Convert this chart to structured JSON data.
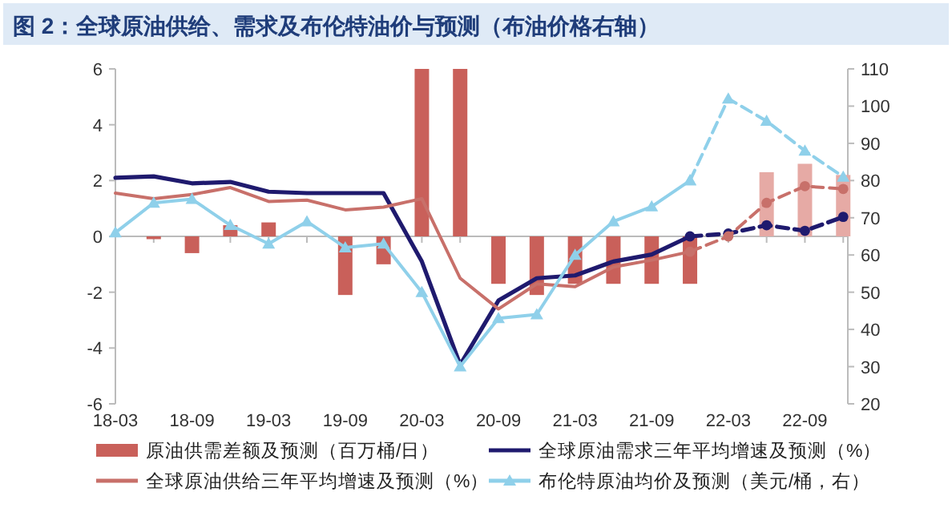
{
  "chart_data": {
    "type": "bar",
    "title": "图 2：全球原油供给、需求及布伦特油价与预测（布油价格右轴）",
    "categories": [
      "18-03",
      null,
      "18-09",
      null,
      "19-03",
      null,
      "19-09",
      null,
      "20-03",
      null,
      "20-09",
      null,
      "21-03",
      null,
      "21-09",
      null,
      "22-03",
      null,
      "22-09",
      null
    ],
    "series": [
      {
        "name": "原油供需差额及预测（百万桶/日）",
        "colors": [
          null,
          "#c9605a",
          "#c9605a",
          "#c9605a",
          "#c9605a",
          null,
          "#c9605a",
          "#c9605a",
          "#c9605a",
          "#c9605a",
          "#c9605a",
          "#c9605a",
          "#c9605a",
          "#c9605a",
          "#c9605a",
          "#c9605a",
          null,
          "#e6aaa5",
          "#e6aaa5",
          "#e6aaa5"
        ],
        "values": [
          null,
          -0.1,
          -0.6,
          0.4,
          0.5,
          null,
          -2.1,
          -1.0,
          6,
          6,
          -1.7,
          -2.1,
          -1.7,
          -1.7,
          -1.7,
          -1.7,
          null,
          2.3,
          2.6,
          2.2
        ]
      },
      {
        "type": "line",
        "name": "全球原油需求三年平均增速及预测（%）",
        "color": "#1f1a6e",
        "line_style": "solid",
        "marker": "none",
        "values": [
          2.1,
          2.15,
          1.9,
          1.95,
          1.6,
          1.55,
          1.55,
          1.55,
          -0.9,
          -4.6,
          -2.3,
          -1.5,
          -1.4,
          -0.9,
          -0.65,
          0,
          null,
          null,
          null,
          null
        ]
      },
      {
        "type": "line",
        "color": "#1f1a6e",
        "line_style": "dashed",
        "marker": "circle",
        "values": [
          null,
          null,
          null,
          null,
          null,
          null,
          null,
          null,
          null,
          null,
          null,
          null,
          null,
          null,
          null,
          0,
          0.1,
          0.4,
          0.2,
          0.7
        ]
      },
      {
        "type": "line",
        "name": "全球原油供给三年平均增速及预测（%）",
        "color": "#c8706a",
        "line_style": "solid",
        "marker": "none",
        "values": [
          1.55,
          1.35,
          1.5,
          1.75,
          1.25,
          1.3,
          0.95,
          1.05,
          1.35,
          -1.5,
          -2.6,
          -1.7,
          -1.8,
          -1.1,
          -0.85,
          -0.55,
          null,
          null,
          null,
          null
        ]
      },
      {
        "type": "line",
        "color": "#c8706a",
        "line_style": "dashed",
        "marker": "circle",
        "values": [
          null,
          null,
          null,
          null,
          null,
          null,
          null,
          null,
          null,
          null,
          null,
          null,
          null,
          null,
          null,
          -0.55,
          0,
          1.2,
          1.8,
          1.7
        ]
      },
      {
        "type": "line",
        "name": "布伦特原油均价及预测（美元/桶，右）",
        "color": "#8fd0ea",
        "axis": "y2",
        "line_style": "solid",
        "marker": "triangle",
        "values": [
          66,
          74,
          75,
          68,
          63,
          69,
          62,
          63,
          50,
          30,
          43,
          44,
          60,
          69,
          73,
          80,
          null,
          null,
          null,
          null
        ]
      },
      {
        "type": "line",
        "color": "#8fd0ea",
        "axis": "y2",
        "line_style": "dashed",
        "marker": "triangle",
        "values": [
          null,
          null,
          null,
          null,
          null,
          null,
          null,
          null,
          null,
          null,
          null,
          null,
          null,
          null,
          null,
          80,
          102,
          96,
          88,
          81
        ]
      }
    ],
    "ylim": [
      -6,
      6
    ],
    "yticks": [
      -6,
      -4,
      -2,
      0,
      2,
      4,
      6
    ],
    "y2lim": [
      20,
      110
    ],
    "y2ticks": [
      20,
      30,
      40,
      50,
      60,
      70,
      80,
      90,
      100,
      110
    ],
    "legend": "bottom"
  }
}
